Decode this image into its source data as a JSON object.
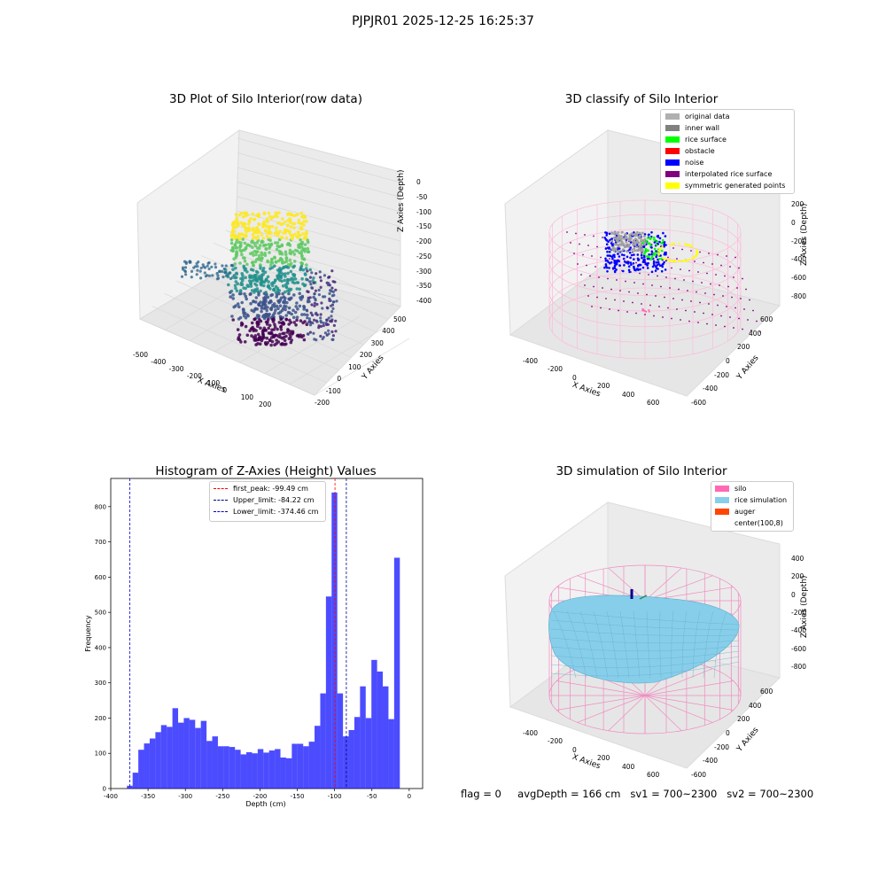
{
  "figure_title": "PJPJR01 2025-12-25 16:25:37",
  "panels": {
    "raw": {
      "title": "3D Plot of Silo Interior(row data)",
      "xlabel": "X Axies",
      "ylabel": "Y Axies",
      "zlabel": "Z Axies (Depth)",
      "xticks": [
        "-500",
        "-400",
        "-300",
        "-200",
        "-100",
        "0",
        "100",
        "200"
      ],
      "yticks": [
        "-200",
        "-100",
        "0",
        "100",
        "200",
        "300",
        "400",
        "500"
      ],
      "zticks": [
        "0",
        "-50",
        "-100",
        "-150",
        "-200",
        "-250",
        "-300",
        "-350",
        "-400"
      ]
    },
    "classify": {
      "title": "3D classify of Silo Interior",
      "xlabel": "X Axies",
      "ylabel": "Y Axies",
      "zlabel": "Z Axies (Depth)",
      "xticks": [
        "-400",
        "-200",
        "0",
        "200",
        "400",
        "600"
      ],
      "yticks": [
        "-600",
        "-400",
        "-200",
        "0",
        "200",
        "400",
        "600"
      ],
      "zticks": [
        "200",
        "0",
        "-200",
        "-400",
        "-600",
        "-800"
      ],
      "legend": [
        {
          "label": "original data",
          "color": "#b0b0b0"
        },
        {
          "label": "inner wall",
          "color": "#808080"
        },
        {
          "label": "rice surface",
          "color": "#00ff00"
        },
        {
          "label": "obstacle",
          "color": "#ff0000"
        },
        {
          "label": "noise",
          "color": "#0000ff"
        },
        {
          "label": "interpolated rice surface",
          "color": "#800080"
        },
        {
          "label": "symmetric generated points",
          "color": "#ffff00"
        }
      ]
    },
    "simulation": {
      "title": "3D simulation of Silo Interior",
      "xlabel": "X Axies",
      "ylabel": "Y Axies",
      "zlabel": "Z Axies (Depth)",
      "xticks": [
        "-400",
        "-200",
        "0",
        "200",
        "400",
        "600"
      ],
      "yticks": [
        "-600",
        "-400",
        "-200",
        "0",
        "200",
        "400",
        "600"
      ],
      "zticks": [
        "400",
        "200",
        "0",
        "-200",
        "-400",
        "-600",
        "-800"
      ],
      "legend": [
        {
          "label": "silo",
          "color": "#ff69b4"
        },
        {
          "label": "rice simulation",
          "color": "#87ceeb"
        },
        {
          "label": "auger",
          "color": "#ff4500"
        },
        {
          "label": "center(100,8)",
          "color": "#ffffff"
        }
      ]
    }
  },
  "chart_data": {
    "type": "bar",
    "title": "Histogram of Z-Axies (Height) Values",
    "xlabel": "Depth (cm)",
    "ylabel": "Frequency",
    "xlim": [
      -400,
      18
    ],
    "ylim": [
      0,
      880
    ],
    "xticks": [
      -400,
      -350,
      -300,
      -250,
      -200,
      -150,
      -100,
      -50,
      0
    ],
    "yticks": [
      0,
      100,
      200,
      300,
      400,
      500,
      600,
      700,
      800
    ],
    "bin_start": -378.3,
    "bin_width": 7.62,
    "color": "#0000ff",
    "values": [
      8,
      45,
      110,
      128,
      142,
      160,
      180,
      175,
      228,
      187,
      200,
      195,
      172,
      192,
      135,
      148,
      120,
      120,
      118,
      110,
      97,
      103,
      100,
      112,
      102,
      108,
      112,
      88,
      86,
      127,
      127,
      120,
      133,
      178,
      270,
      545,
      840,
      270,
      148,
      166,
      203,
      290,
      200,
      365,
      332,
      290,
      197,
      655
    ],
    "lines": [
      {
        "label": "first_peak: -99.49 cm",
        "x": -99.49,
        "color": "#ff0000"
      },
      {
        "label": "Upper_limit: -84.22 cm",
        "x": -84.22,
        "color": "#00008b"
      },
      {
        "label": "Lower_limit: -374.46 cm",
        "x": -374.46,
        "color": "#0000cd"
      }
    ]
  },
  "footer": {
    "flag": "flag = 0",
    "avg_depth": "avgDepth = 166 cm",
    "sv1": "sv1 = 700~2300",
    "sv2": "sv2 = 700~2300"
  }
}
